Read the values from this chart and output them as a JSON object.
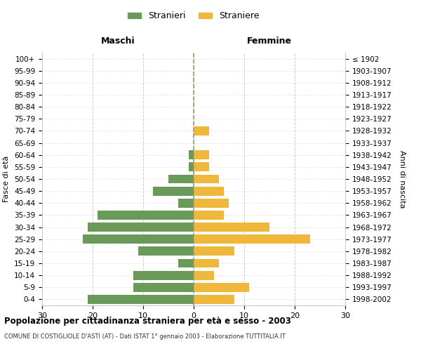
{
  "age_groups": [
    "0-4",
    "5-9",
    "10-14",
    "15-19",
    "20-24",
    "25-29",
    "30-34",
    "35-39",
    "40-44",
    "45-49",
    "50-54",
    "55-59",
    "60-64",
    "65-69",
    "70-74",
    "75-79",
    "80-84",
    "85-89",
    "90-94",
    "95-99",
    "100+"
  ],
  "birth_years": [
    "1998-2002",
    "1993-1997",
    "1988-1992",
    "1983-1987",
    "1978-1982",
    "1973-1977",
    "1968-1972",
    "1963-1967",
    "1958-1962",
    "1953-1957",
    "1948-1952",
    "1943-1947",
    "1938-1942",
    "1933-1937",
    "1928-1932",
    "1923-1927",
    "1918-1922",
    "1913-1917",
    "1908-1912",
    "1903-1907",
    "≤ 1902"
  ],
  "males": [
    21,
    12,
    12,
    3,
    11,
    22,
    21,
    19,
    3,
    8,
    5,
    1,
    1,
    0,
    0,
    0,
    0,
    0,
    0,
    0,
    0
  ],
  "females": [
    8,
    11,
    4,
    5,
    8,
    23,
    15,
    6,
    7,
    6,
    5,
    3,
    3,
    0,
    3,
    0,
    0,
    0,
    0,
    0,
    0
  ],
  "male_color": "#6a9a5a",
  "female_color": "#f0b83a",
  "title": "Popolazione per cittadinanza straniera per età e sesso - 2003",
  "subtitle": "COMUNE DI COSTIGLIOLE D'ASTI (AT) - Dati ISTAT 1° gennaio 2003 - Elaborazione TUTTITALIA.IT",
  "xlabel_left": "Maschi",
  "xlabel_right": "Femmine",
  "ylabel_left": "Fasce di età",
  "ylabel_right": "Anni di nascita",
  "legend_male": "Stranieri",
  "legend_female": "Straniere",
  "xlim": 30,
  "background_color": "#ffffff",
  "grid_color": "#cccccc"
}
